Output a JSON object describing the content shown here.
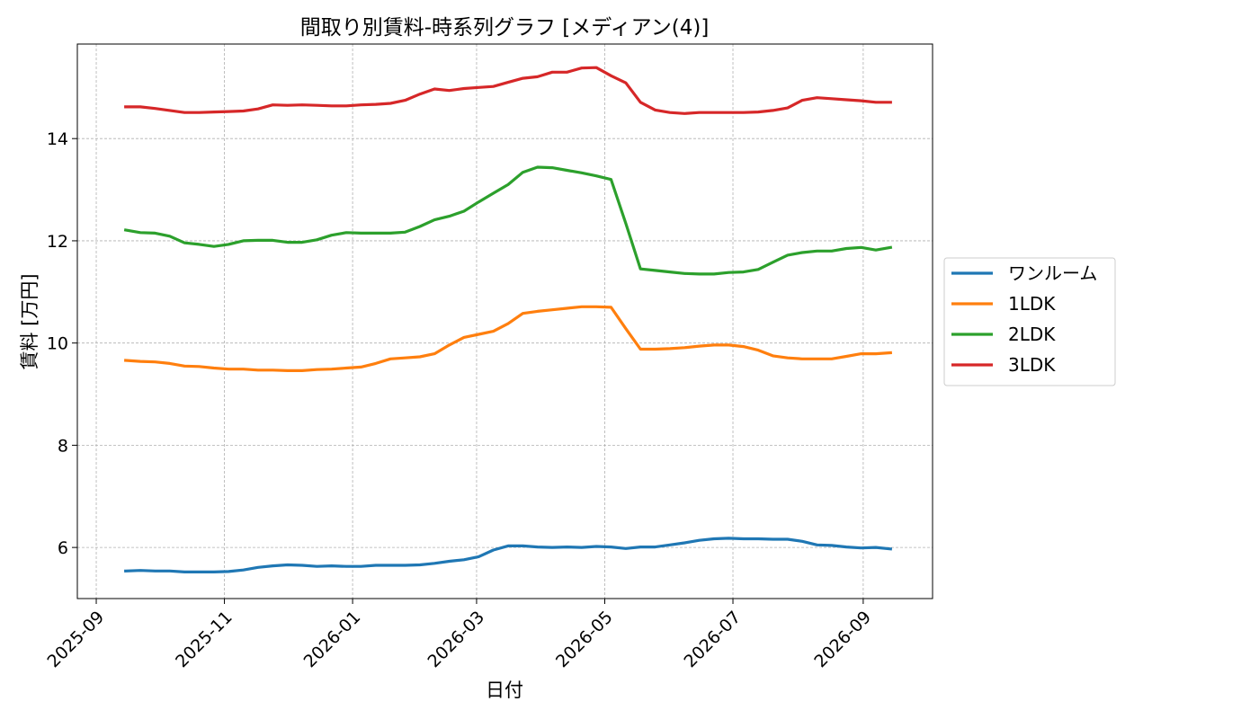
{
  "chart_data": {
    "type": "line",
    "title": "間取り別賃料-時系列グラフ [メディアン(4)]",
    "xlabel": "日付",
    "ylabel": "賃料 [万円]",
    "x_ticks": [
      "2025-09",
      "2025-11",
      "2026-01",
      "2026-03",
      "2026-05",
      "2026-07",
      "2026-09"
    ],
    "y_ticks": [
      6,
      8,
      10,
      12,
      14
    ],
    "xlim": [
      "2025-08-23",
      "2026-10-04"
    ],
    "ylim": [
      5.0,
      15.85
    ],
    "grid": true,
    "legend_position": "center-right outside plot",
    "dates": [
      "2025-09-15",
      "2025-09-22",
      "2025-09-29",
      "2025-10-06",
      "2025-10-13",
      "2025-10-20",
      "2025-10-27",
      "2025-11-03",
      "2025-11-10",
      "2025-11-17",
      "2025-11-24",
      "2025-12-01",
      "2025-12-08",
      "2025-12-15",
      "2025-12-22",
      "2025-12-29",
      "2026-01-05",
      "2026-01-12",
      "2026-01-19",
      "2026-01-26",
      "2026-02-02",
      "2026-02-09",
      "2026-02-16",
      "2026-02-23",
      "2026-03-02",
      "2026-03-09",
      "2026-03-16",
      "2026-03-23",
      "2026-03-30",
      "2026-04-06",
      "2026-04-13",
      "2026-04-20",
      "2026-04-27",
      "2026-05-04",
      "2026-05-11",
      "2026-05-18",
      "2026-05-25",
      "2026-06-01",
      "2026-06-08",
      "2026-06-15",
      "2026-06-22",
      "2026-06-29",
      "2026-07-06",
      "2026-07-13",
      "2026-07-20",
      "2026-07-27",
      "2026-08-03",
      "2026-08-10",
      "2026-08-17",
      "2026-08-24",
      "2026-08-31",
      "2026-09-07",
      "2026-09-14"
    ],
    "series": [
      {
        "name": "ワンルーム",
        "color": "#1f77b4",
        "values": [
          5.54,
          5.55,
          5.54,
          5.54,
          5.52,
          5.52,
          5.52,
          5.53,
          5.56,
          5.61,
          5.64,
          5.66,
          5.65,
          5.63,
          5.64,
          5.63,
          5.63,
          5.65,
          5.65,
          5.65,
          5.66,
          5.69,
          5.73,
          5.76,
          5.82,
          5.95,
          6.03,
          6.03,
          6.01,
          6.0,
          6.01,
          6.0,
          6.02,
          6.01,
          5.98,
          6.01,
          6.01,
          6.05,
          6.09,
          6.14,
          6.17,
          6.18,
          6.17,
          6.17,
          6.16,
          6.16,
          6.12,
          6.05,
          6.04,
          6.01,
          5.99,
          6.0,
          5.97
        ]
      },
      {
        "name": "1LDK",
        "color": "#ff7f0e",
        "values": [
          9.66,
          9.64,
          9.63,
          9.6,
          9.55,
          9.54,
          9.51,
          9.49,
          9.49,
          9.47,
          9.47,
          9.46,
          9.46,
          9.48,
          9.49,
          9.51,
          9.53,
          9.6,
          9.69,
          9.71,
          9.73,
          9.79,
          9.96,
          10.11,
          10.17,
          10.23,
          10.38,
          10.58,
          10.62,
          10.65,
          10.68,
          10.71,
          10.71,
          10.7,
          10.28,
          9.88,
          9.88,
          9.89,
          9.91,
          9.94,
          9.96,
          9.96,
          9.93,
          9.86,
          9.75,
          9.71,
          9.69,
          9.69,
          9.69,
          9.74,
          9.79,
          9.79,
          9.81
        ]
      },
      {
        "name": "2LDK",
        "color": "#2ca02c",
        "values": [
          12.21,
          12.16,
          12.15,
          12.09,
          11.96,
          11.93,
          11.89,
          11.93,
          12.0,
          12.01,
          12.01,
          11.97,
          11.97,
          12.02,
          12.11,
          12.16,
          12.15,
          12.15,
          12.15,
          12.17,
          12.28,
          12.41,
          12.48,
          12.58,
          12.76,
          12.93,
          13.1,
          13.34,
          13.44,
          13.43,
          13.38,
          13.33,
          13.27,
          13.2,
          12.34,
          11.45,
          11.42,
          11.39,
          11.36,
          11.35,
          11.35,
          11.38,
          11.39,
          11.44,
          11.58,
          11.72,
          11.77,
          11.8,
          11.8,
          11.85,
          11.87,
          11.82,
          11.87
        ]
      },
      {
        "name": "3LDK",
        "color": "#d62728",
        "values": [
          14.62,
          14.62,
          14.59,
          14.55,
          14.51,
          14.51,
          14.52,
          14.53,
          14.54,
          14.58,
          14.66,
          14.65,
          14.66,
          14.65,
          14.64,
          14.64,
          14.66,
          14.67,
          14.69,
          14.75,
          14.87,
          14.97,
          14.94,
          14.98,
          15.0,
          15.02,
          15.1,
          15.18,
          15.21,
          15.3,
          15.3,
          15.38,
          15.39,
          15.23,
          15.09,
          14.71,
          14.56,
          14.51,
          14.49,
          14.51,
          14.51,
          14.51,
          14.51,
          14.52,
          14.55,
          14.6,
          14.75,
          14.8,
          14.78,
          14.76,
          14.74,
          14.71,
          14.71
        ]
      }
    ]
  }
}
